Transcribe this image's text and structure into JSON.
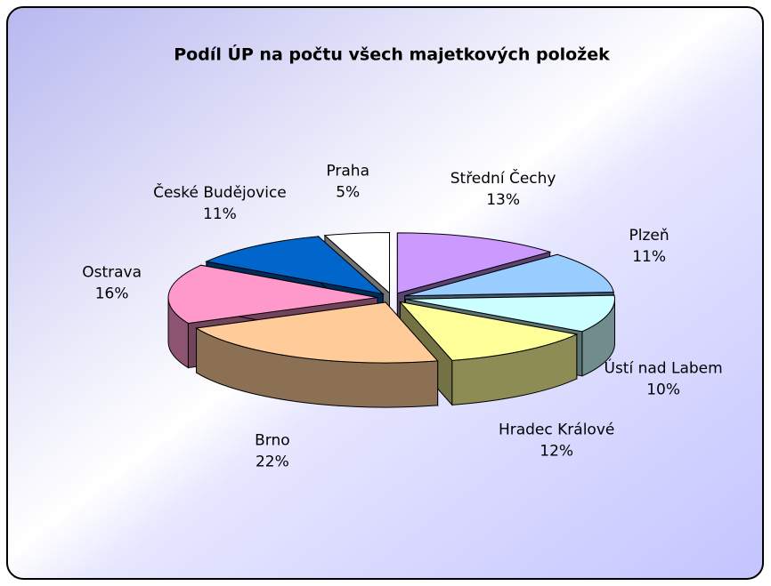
{
  "chart_data": {
    "type": "pie",
    "title": "Podíl ÚP na počtu všech majetkových položek",
    "categories": [
      "Střední Čechy",
      "Plzeň",
      "Ústí nad Labem",
      "Hradec Králové",
      "Brno",
      "Ostrava",
      "České Budějovice",
      "Praha"
    ],
    "values": [
      13,
      11,
      10,
      12,
      22,
      16,
      11,
      5
    ],
    "value_labels": [
      "13%",
      "11%",
      "10%",
      "12%",
      "22%",
      "16%",
      "11%",
      "5%"
    ],
    "colors": [
      "#cc99ff",
      "#99ccff",
      "#ccffff",
      "#ffff99",
      "#ffcc99",
      "#ff99cc",
      "#0066cc",
      "#ffffff"
    ]
  }
}
